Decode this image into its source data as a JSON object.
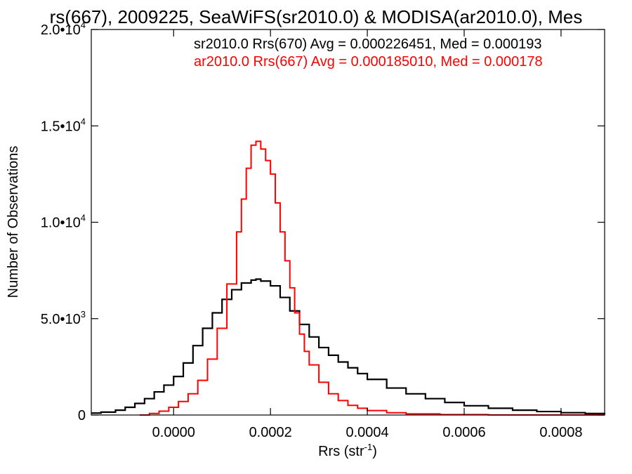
{
  "chart_data": {
    "type": "line",
    "title": "rs(667), 2009225, SeaWiFS(sr2010.0) & MODISA(ar2010.0), Mes",
    "xlabel": "Rrs (str",
    "xlabel_sup": "-1",
    "xlabel_close": ")",
    "ylabel": "Number of Observations",
    "xlim": [
      -0.00017,
      0.00089
    ],
    "ylim": [
      0,
      20000
    ],
    "x_ticks": [
      {
        "value": 0.0,
        "label": "0.0000"
      },
      {
        "value": 0.0002,
        "label": "0.0002"
      },
      {
        "value": 0.0004,
        "label": "0.0004"
      },
      {
        "value": 0.0006,
        "label": "0.0006"
      },
      {
        "value": 0.0008,
        "label": "0.0008"
      }
    ],
    "y_ticks": [
      {
        "value": 0,
        "mant": "0",
        "exp": ""
      },
      {
        "value": 5000,
        "mant": "5.0•10",
        "exp": "3"
      },
      {
        "value": 10000,
        "mant": "1.0•10",
        "exp": "4"
      },
      {
        "value": 15000,
        "mant": "1.5•10",
        "exp": "4"
      },
      {
        "value": 20000,
        "mant": "2.0•10",
        "exp": "4"
      }
    ],
    "annotations": [
      {
        "text": "sr2010.0 Rrs(670) Avg = 0.000226451, Med = 0.000193",
        "color": "#000000"
      },
      {
        "text": "ar2010.0 Rrs(667) Avg = 0.000185010, Med = 0.000178",
        "color": "#ff0000"
      }
    ],
    "series": [
      {
        "color": "#000000",
        "style": "step",
        "points": [
          [
            -0.00017,
            100
          ],
          [
            -0.00015,
            150
          ],
          [
            -0.00012,
            250
          ],
          [
            -0.0001,
            400
          ],
          [
            -8e-05,
            600
          ],
          [
            -6e-05,
            850
          ],
          [
            -4e-05,
            1200
          ],
          [
            -2e-05,
            1550
          ],
          [
            0.0,
            2000
          ],
          [
            2e-05,
            2700
          ],
          [
            4e-05,
            3600
          ],
          [
            6e-05,
            4500
          ],
          [
            8e-05,
            5300
          ],
          [
            0.0001,
            6000
          ],
          [
            0.00012,
            6500
          ],
          [
            0.00014,
            6850
          ],
          [
            0.00016,
            7000
          ],
          [
            0.00017,
            7050
          ],
          [
            0.00018,
            6950
          ],
          [
            0.0002,
            6700
          ],
          [
            0.00022,
            6100
          ],
          [
            0.00024,
            5400
          ],
          [
            0.00026,
            4700
          ],
          [
            0.00028,
            4050
          ],
          [
            0.0003,
            3500
          ],
          [
            0.00032,
            3100
          ],
          [
            0.00034,
            2750
          ],
          [
            0.00036,
            2450
          ],
          [
            0.00038,
            2150
          ],
          [
            0.0004,
            1850
          ],
          [
            0.00044,
            1400
          ],
          [
            0.00048,
            1100
          ],
          [
            0.00052,
            850
          ],
          [
            0.00056,
            650
          ],
          [
            0.0006,
            480
          ],
          [
            0.00065,
            350
          ],
          [
            0.0007,
            250
          ],
          [
            0.00075,
            180
          ],
          [
            0.0008,
            120
          ],
          [
            0.00085,
            80
          ],
          [
            0.00089,
            60
          ]
        ]
      },
      {
        "color": "#ff0000",
        "style": "step",
        "points": [
          [
            -7e-05,
            0
          ],
          [
            -5e-05,
            80
          ],
          [
            -3e-05,
            200
          ],
          [
            -1e-05,
            400
          ],
          [
            1e-05,
            700
          ],
          [
            3e-05,
            1100
          ],
          [
            5e-05,
            1800
          ],
          [
            7e-05,
            2900
          ],
          [
            9e-05,
            4500
          ],
          [
            0.00011,
            6800
          ],
          [
            0.00013,
            9500
          ],
          [
            0.00014,
            11200
          ],
          [
            0.00015,
            12800
          ],
          [
            0.00016,
            14000
          ],
          [
            0.00017,
            14200
          ],
          [
            0.00018,
            13800
          ],
          [
            0.00019,
            13200
          ],
          [
            0.0002,
            12500
          ],
          [
            0.00021,
            11000
          ],
          [
            0.00022,
            9500
          ],
          [
            0.00023,
            8000
          ],
          [
            0.00024,
            6600
          ],
          [
            0.00025,
            5300
          ],
          [
            0.00026,
            4200
          ],
          [
            0.00027,
            3300
          ],
          [
            0.00028,
            2600
          ],
          [
            0.0003,
            1700
          ],
          [
            0.00032,
            1100
          ],
          [
            0.00034,
            750
          ],
          [
            0.00036,
            500
          ],
          [
            0.00038,
            350
          ],
          [
            0.0004,
            230
          ],
          [
            0.00044,
            120
          ],
          [
            0.00048,
            60
          ],
          [
            0.00055,
            25
          ],
          [
            0.00065,
            5
          ],
          [
            0.00089,
            0
          ]
        ]
      }
    ]
  }
}
